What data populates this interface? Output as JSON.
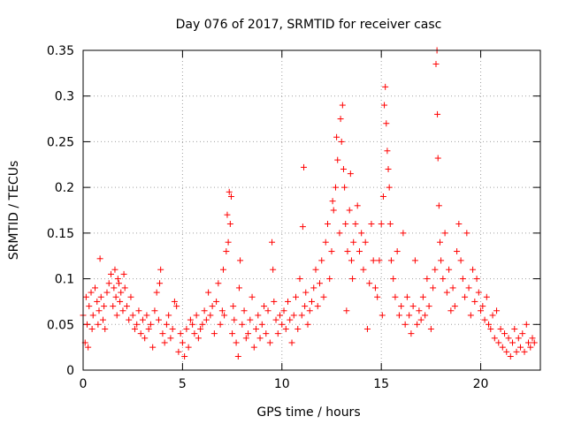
{
  "chart_data": {
    "type": "scatter",
    "title": "Day 076 of 2017, SRMTID for receiver casc",
    "xlabel": "GPS time / hours",
    "ylabel": "SRMTID / TECUs",
    "xlim": [
      0,
      23
    ],
    "ylim": [
      0,
      0.35
    ],
    "xticks": [
      0,
      5,
      10,
      15,
      20
    ],
    "xtick_labels": [
      "0",
      "5",
      "10",
      "15",
      "20"
    ],
    "yticks": [
      0,
      0.05,
      0.1,
      0.15,
      0.2,
      0.25,
      0.3,
      0.35
    ],
    "ytick_labels": [
      "0",
      "0.05",
      "0.1",
      "0.15",
      "0.2",
      "0.25",
      "0.3",
      "0.35"
    ],
    "grid": true,
    "marker": "plus",
    "color": "#ff0000",
    "series": [
      {
        "name": "SRMTID",
        "points": [
          [
            0.0,
            0.06
          ],
          [
            0.1,
            0.03
          ],
          [
            0.15,
            0.08
          ],
          [
            0.2,
            0.05
          ],
          [
            0.25,
            0.025
          ],
          [
            0.3,
            0.07
          ],
          [
            0.4,
            0.085
          ],
          [
            0.45,
            0.045
          ],
          [
            0.5,
            0.06
          ],
          [
            0.6,
            0.09
          ],
          [
            0.7,
            0.075
          ],
          [
            0.75,
            0.05
          ],
          [
            0.8,
            0.065
          ],
          [
            0.85,
            0.122
          ],
          [
            0.9,
            0.08
          ],
          [
            1.0,
            0.055
          ],
          [
            1.05,
            0.07
          ],
          [
            1.1,
            0.045
          ],
          [
            1.2,
            0.085
          ],
          [
            1.3,
            0.095
          ],
          [
            1.4,
            0.105
          ],
          [
            1.5,
            0.07
          ],
          [
            1.55,
            0.09
          ],
          [
            1.6,
            0.11
          ],
          [
            1.65,
            0.08
          ],
          [
            1.7,
            0.06
          ],
          [
            1.75,
            0.1
          ],
          [
            1.8,
            0.095
          ],
          [
            1.85,
            0.075
          ],
          [
            1.9,
            0.085
          ],
          [
            2.0,
            0.065
          ],
          [
            2.05,
            0.105
          ],
          [
            2.1,
            0.09
          ],
          [
            2.2,
            0.07
          ],
          [
            2.3,
            0.055
          ],
          [
            2.4,
            0.08
          ],
          [
            2.5,
            0.06
          ],
          [
            2.6,
            0.045
          ],
          [
            2.7,
            0.05
          ],
          [
            2.8,
            0.065
          ],
          [
            2.9,
            0.04
          ],
          [
            3.0,
            0.055
          ],
          [
            3.1,
            0.035
          ],
          [
            3.2,
            0.06
          ],
          [
            3.3,
            0.045
          ],
          [
            3.4,
            0.05
          ],
          [
            3.5,
            0.025
          ],
          [
            3.6,
            0.065
          ],
          [
            3.7,
            0.085
          ],
          [
            3.8,
            0.055
          ],
          [
            3.85,
            0.095
          ],
          [
            3.9,
            0.11
          ],
          [
            4.0,
            0.04
          ],
          [
            4.1,
            0.03
          ],
          [
            4.2,
            0.05
          ],
          [
            4.3,
            0.06
          ],
          [
            4.4,
            0.035
          ],
          [
            4.5,
            0.045
          ],
          [
            4.6,
            0.075
          ],
          [
            4.7,
            0.07
          ],
          [
            4.8,
            0.02
          ],
          [
            4.9,
            0.04
          ],
          [
            5.0,
            0.03
          ],
          [
            5.1,
            0.015
          ],
          [
            5.2,
            0.045
          ],
          [
            5.3,
            0.025
          ],
          [
            5.4,
            0.055
          ],
          [
            5.5,
            0.05
          ],
          [
            5.6,
            0.04
          ],
          [
            5.7,
            0.06
          ],
          [
            5.8,
            0.035
          ],
          [
            5.9,
            0.045
          ],
          [
            6.0,
            0.05
          ],
          [
            6.1,
            0.065
          ],
          [
            6.2,
            0.055
          ],
          [
            6.3,
            0.085
          ],
          [
            6.4,
            0.06
          ],
          [
            6.5,
            0.07
          ],
          [
            6.6,
            0.04
          ],
          [
            6.7,
            0.075
          ],
          [
            6.8,
            0.095
          ],
          [
            6.9,
            0.05
          ],
          [
            7.0,
            0.065
          ],
          [
            7.05,
            0.11
          ],
          [
            7.1,
            0.06
          ],
          [
            7.2,
            0.13
          ],
          [
            7.25,
            0.17
          ],
          [
            7.3,
            0.14
          ],
          [
            7.35,
            0.195
          ],
          [
            7.4,
            0.16
          ],
          [
            7.45,
            0.19
          ],
          [
            7.5,
            0.04
          ],
          [
            7.55,
            0.07
          ],
          [
            7.6,
            0.055
          ],
          [
            7.7,
            0.03
          ],
          [
            7.8,
            0.015
          ],
          [
            7.85,
            0.09
          ],
          [
            7.9,
            0.12
          ],
          [
            8.0,
            0.05
          ],
          [
            8.1,
            0.065
          ],
          [
            8.2,
            0.035
          ],
          [
            8.3,
            0.04
          ],
          [
            8.4,
            0.055
          ],
          [
            8.5,
            0.08
          ],
          [
            8.6,
            0.025
          ],
          [
            8.7,
            0.045
          ],
          [
            8.8,
            0.06
          ],
          [
            8.9,
            0.035
          ],
          [
            9.0,
            0.05
          ],
          [
            9.1,
            0.07
          ],
          [
            9.2,
            0.04
          ],
          [
            9.3,
            0.065
          ],
          [
            9.4,
            0.03
          ],
          [
            9.5,
            0.14
          ],
          [
            9.55,
            0.11
          ],
          [
            9.6,
            0.075
          ],
          [
            9.7,
            0.055
          ],
          [
            9.8,
            0.04
          ],
          [
            9.9,
            0.06
          ],
          [
            10.0,
            0.05
          ],
          [
            10.1,
            0.065
          ],
          [
            10.2,
            0.045
          ],
          [
            10.3,
            0.075
          ],
          [
            10.4,
            0.055
          ],
          [
            10.5,
            0.03
          ],
          [
            10.6,
            0.06
          ],
          [
            10.7,
            0.08
          ],
          [
            10.8,
            0.045
          ],
          [
            10.9,
            0.1
          ],
          [
            11.0,
            0.06
          ],
          [
            11.05,
            0.157
          ],
          [
            11.1,
            0.222
          ],
          [
            11.15,
            0.07
          ],
          [
            11.2,
            0.085
          ],
          [
            11.3,
            0.05
          ],
          [
            11.4,
            0.065
          ],
          [
            11.5,
            0.075
          ],
          [
            11.6,
            0.09
          ],
          [
            11.7,
            0.11
          ],
          [
            11.8,
            0.07
          ],
          [
            11.9,
            0.095
          ],
          [
            12.0,
            0.12
          ],
          [
            12.1,
            0.08
          ],
          [
            12.2,
            0.14
          ],
          [
            12.3,
            0.16
          ],
          [
            12.4,
            0.1
          ],
          [
            12.5,
            0.13
          ],
          [
            12.55,
            0.185
          ],
          [
            12.6,
            0.175
          ],
          [
            12.7,
            0.2
          ],
          [
            12.75,
            0.255
          ],
          [
            12.8,
            0.23
          ],
          [
            12.9,
            0.15
          ],
          [
            12.95,
            0.275
          ],
          [
            13.0,
            0.25
          ],
          [
            13.05,
            0.29
          ],
          [
            13.1,
            0.22
          ],
          [
            13.15,
            0.2
          ],
          [
            13.2,
            0.16
          ],
          [
            13.25,
            0.065
          ],
          [
            13.3,
            0.13
          ],
          [
            13.4,
            0.175
          ],
          [
            13.45,
            0.215
          ],
          [
            13.5,
            0.12
          ],
          [
            13.55,
            0.1
          ],
          [
            13.6,
            0.14
          ],
          [
            13.7,
            0.16
          ],
          [
            13.8,
            0.18
          ],
          [
            13.9,
            0.13
          ],
          [
            14.0,
            0.15
          ],
          [
            14.1,
            0.11
          ],
          [
            14.2,
            0.14
          ],
          [
            14.3,
            0.045
          ],
          [
            14.4,
            0.095
          ],
          [
            14.5,
            0.16
          ],
          [
            14.6,
            0.12
          ],
          [
            14.7,
            0.09
          ],
          [
            14.8,
            0.08
          ],
          [
            14.9,
            0.12
          ],
          [
            15.0,
            0.16
          ],
          [
            15.05,
            0.06
          ],
          [
            15.1,
            0.19
          ],
          [
            15.15,
            0.29
          ],
          [
            15.2,
            0.31
          ],
          [
            15.25,
            0.27
          ],
          [
            15.3,
            0.24
          ],
          [
            15.35,
            0.22
          ],
          [
            15.4,
            0.2
          ],
          [
            15.45,
            0.16
          ],
          [
            15.5,
            0.12
          ],
          [
            15.6,
            0.1
          ],
          [
            15.7,
            0.08
          ],
          [
            15.8,
            0.13
          ],
          [
            15.9,
            0.06
          ],
          [
            16.0,
            0.07
          ],
          [
            16.1,
            0.15
          ],
          [
            16.2,
            0.05
          ],
          [
            16.3,
            0.08
          ],
          [
            16.4,
            0.06
          ],
          [
            16.5,
            0.04
          ],
          [
            16.6,
            0.07
          ],
          [
            16.7,
            0.12
          ],
          [
            16.8,
            0.05
          ],
          [
            16.9,
            0.065
          ],
          [
            17.0,
            0.055
          ],
          [
            17.1,
            0.08
          ],
          [
            17.2,
            0.06
          ],
          [
            17.3,
            0.1
          ],
          [
            17.4,
            0.07
          ],
          [
            17.5,
            0.045
          ],
          [
            17.6,
            0.09
          ],
          [
            17.7,
            0.11
          ],
          [
            17.75,
            0.335
          ],
          [
            17.8,
            0.35
          ],
          [
            17.82,
            0.28
          ],
          [
            17.85,
            0.232
          ],
          [
            17.9,
            0.18
          ],
          [
            17.95,
            0.14
          ],
          [
            18.0,
            0.12
          ],
          [
            18.1,
            0.1
          ],
          [
            18.2,
            0.15
          ],
          [
            18.3,
            0.085
          ],
          [
            18.4,
            0.11
          ],
          [
            18.5,
            0.065
          ],
          [
            18.6,
            0.09
          ],
          [
            18.7,
            0.07
          ],
          [
            18.8,
            0.13
          ],
          [
            18.9,
            0.16
          ],
          [
            19.0,
            0.12
          ],
          [
            19.1,
            0.1
          ],
          [
            19.2,
            0.08
          ],
          [
            19.3,
            0.15
          ],
          [
            19.4,
            0.09
          ],
          [
            19.5,
            0.06
          ],
          [
            19.6,
            0.11
          ],
          [
            19.7,
            0.075
          ],
          [
            19.8,
            0.1
          ],
          [
            19.9,
            0.085
          ],
          [
            20.0,
            0.065
          ],
          [
            20.1,
            0.07
          ],
          [
            20.2,
            0.055
          ],
          [
            20.3,
            0.08
          ],
          [
            20.4,
            0.05
          ],
          [
            20.5,
            0.045
          ],
          [
            20.6,
            0.06
          ],
          [
            20.7,
            0.035
          ],
          [
            20.8,
            0.065
          ],
          [
            20.9,
            0.03
          ],
          [
            21.0,
            0.045
          ],
          [
            21.1,
            0.025
          ],
          [
            21.2,
            0.04
          ],
          [
            21.3,
            0.02
          ],
          [
            21.4,
            0.035
          ],
          [
            21.5,
            0.015
          ],
          [
            21.6,
            0.03
          ],
          [
            21.7,
            0.045
          ],
          [
            21.8,
            0.02
          ],
          [
            21.9,
            0.035
          ],
          [
            22.0,
            0.025
          ],
          [
            22.1,
            0.04
          ],
          [
            22.2,
            0.02
          ],
          [
            22.3,
            0.05
          ],
          [
            22.4,
            0.03
          ],
          [
            22.5,
            0.025
          ],
          [
            22.6,
            0.035
          ],
          [
            22.7,
            0.03
          ]
        ]
      }
    ]
  }
}
